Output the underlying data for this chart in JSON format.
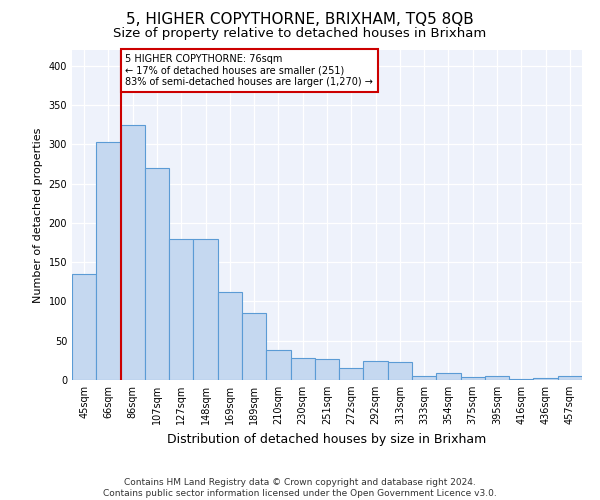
{
  "title": "5, HIGHER COPYTHORNE, BRIXHAM, TQ5 8QB",
  "subtitle": "Size of property relative to detached houses in Brixham",
  "xlabel": "Distribution of detached houses by size in Brixham",
  "ylabel": "Number of detached properties",
  "categories": [
    "45sqm",
    "66sqm",
    "86sqm",
    "107sqm",
    "127sqm",
    "148sqm",
    "169sqm",
    "189sqm",
    "210sqm",
    "230sqm",
    "251sqm",
    "272sqm",
    "292sqm",
    "313sqm",
    "333sqm",
    "354sqm",
    "375sqm",
    "395sqm",
    "416sqm",
    "436sqm",
    "457sqm"
  ],
  "values": [
    135,
    303,
    325,
    270,
    180,
    180,
    112,
    85,
    38,
    28,
    27,
    15,
    24,
    23,
    5,
    9,
    4,
    5,
    1,
    3,
    5
  ],
  "bar_color": "#c5d8f0",
  "bar_edge_color": "#5b9bd5",
  "redline_x": 1.5,
  "annotation_text": "5 HIGHER COPYTHORNE: 76sqm\n← 17% of detached houses are smaller (251)\n83% of semi-detached houses are larger (1,270) →",
  "annotation_box_color": "#ffffff",
  "annotation_box_edge_color": "#cc0000",
  "ylim": [
    0,
    420
  ],
  "yticks": [
    0,
    50,
    100,
    150,
    200,
    250,
    300,
    350,
    400
  ],
  "footer": "Contains HM Land Registry data © Crown copyright and database right 2024.\nContains public sector information licensed under the Open Government Licence v3.0.",
  "title_fontsize": 11,
  "subtitle_fontsize": 9.5,
  "xlabel_fontsize": 9,
  "ylabel_fontsize": 8,
  "footer_fontsize": 6.5,
  "tick_fontsize": 7,
  "background_color": "#eef2fb"
}
